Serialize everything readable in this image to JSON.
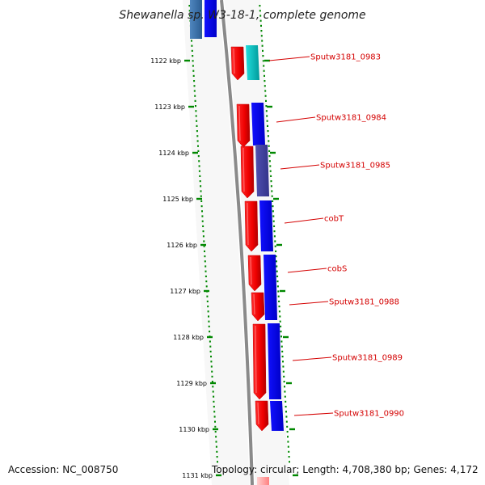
{
  "title": "Shewanella sp. W3-18-1, complete genome",
  "footer": {
    "accession": "Accession: NC_008750",
    "topology": "Topology: circular; Length: 4,708,380 bp; Genes: 4,172"
  },
  "ticks": [
    "1122 kbp",
    "1123 kbp",
    "1124 kbp",
    "1125 kbp",
    "1126 kbp",
    "1127 kbp",
    "1128 kbp",
    "1129 kbp",
    "1130 kbp",
    "1131 kbp"
  ],
  "genes": [
    {
      "label": "Sputw3181_0983",
      "strand": "reverse",
      "color_pair": [
        "#ee0000",
        "#11cccc"
      ]
    },
    {
      "label": "Sputw3181_0984",
      "strand": "reverse",
      "color_pair": [
        "#ee0000",
        "#1111dd"
      ]
    },
    {
      "label": "Sputw3181_0985",
      "strand": "reverse",
      "color_pair": [
        "#ee0000",
        "#4444aa"
      ]
    },
    {
      "label": "cobT",
      "strand": "reverse",
      "color_pair": [
        "#ee0000",
        "#0000ff"
      ]
    },
    {
      "label": "cobS",
      "strand": "reverse",
      "color_pair": [
        "#ee0000",
        "#0000ff"
      ]
    },
    {
      "label": "Sputw3181_0988",
      "strand": "reverse",
      "color_pair": [
        "#ee0000",
        "#0000ff"
      ]
    },
    {
      "label": "Sputw3181_0989",
      "strand": "reverse",
      "color_pair": [
        "#ee0000",
        "#0000ff"
      ]
    },
    {
      "label": "Sputw3181_0990",
      "strand": "reverse",
      "color_pair": [
        "#ee0000",
        "#0000ff"
      ]
    }
  ],
  "colors": {
    "backbone": "#888888",
    "tick": "#008800",
    "label": "#d40000"
  }
}
